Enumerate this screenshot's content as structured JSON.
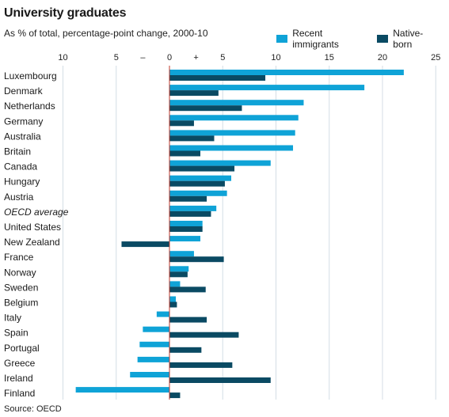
{
  "chart_data": {
    "type": "bar",
    "orientation": "horizontal",
    "title": "University graduates",
    "subtitle": "As % of total, percentage-point change, 2000-10",
    "source": "Source: OECD",
    "xlim": [
      -10,
      25
    ],
    "ticks": [
      -10,
      -5,
      0,
      5,
      10,
      15,
      20,
      25
    ],
    "tick_labels": [
      "10",
      "5",
      "0",
      "5",
      "10",
      "15",
      "20",
      "25"
    ],
    "sign_labels": [
      "–",
      "+"
    ],
    "grid": true,
    "legend_position": "top-right",
    "categories": [
      "Luxembourg",
      "Denmark",
      "Netherlands",
      "Germany",
      "Australia",
      "Britain",
      "Canada",
      "Hungary",
      "Austria",
      "OECD average",
      "United States",
      "New Zealand",
      "France",
      "Norway",
      "Sweden",
      "Belgium",
      "Italy",
      "Spain",
      "Portugal",
      "Greece",
      "Ireland",
      "Finland"
    ],
    "italic_categories": [
      "OECD average"
    ],
    "series": [
      {
        "name": "Recent immigrants",
        "color": "#0fa3d7",
        "values": [
          22.0,
          18.3,
          12.6,
          12.1,
          11.8,
          11.6,
          9.5,
          5.8,
          5.4,
          4.4,
          3.1,
          2.9,
          2.3,
          1.8,
          1.0,
          0.6,
          -1.2,
          -2.5,
          -2.8,
          -3.0,
          -3.7,
          -8.8
        ]
      },
      {
        "name": "Native-born",
        "color": "#0a4a63",
        "values": [
          9.0,
          4.6,
          6.8,
          2.3,
          4.2,
          2.9,
          6.1,
          5.2,
          3.5,
          3.9,
          3.1,
          -4.5,
          5.1,
          1.7,
          3.4,
          0.7,
          3.5,
          6.5,
          3.0,
          5.9,
          9.5,
          1.0
        ]
      }
    ]
  }
}
